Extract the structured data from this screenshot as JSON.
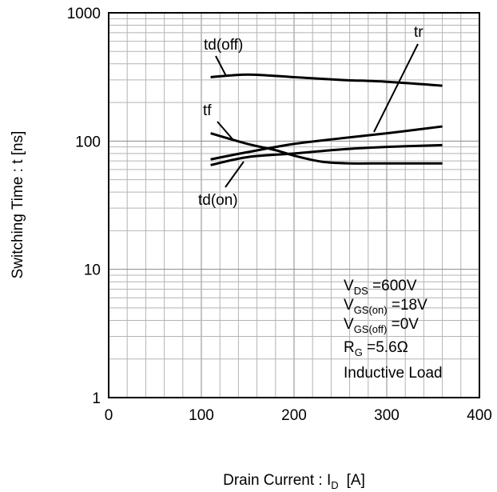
{
  "chart_data": {
    "type": "line",
    "xlabel": {
      "main": "Drain Current : I",
      "sub": "D",
      "unit": "[A]"
    },
    "ylabel": "Switching Time : t [ns]",
    "xlim": [
      0,
      400
    ],
    "ylim": [
      1,
      1000
    ],
    "y_scale": "log",
    "grid": true,
    "x_ticks": [
      0,
      100,
      200,
      300,
      400
    ],
    "x_tick_labels": [
      "0",
      "100",
      "200",
      "300",
      "400"
    ],
    "y_ticks": [
      1,
      10,
      100,
      1000
    ],
    "y_tick_labels": [
      "1",
      "10",
      "100",
      "1000"
    ],
    "series": [
      {
        "name": "td(off)",
        "x": [
          110,
          150,
          200,
          250,
          300,
          360
        ],
        "y": [
          315,
          330,
          315,
          300,
          290,
          270
        ]
      },
      {
        "name": "tr",
        "x": [
          110,
          150,
          200,
          250,
          300,
          360
        ],
        "y": [
          72,
          82,
          95,
          105,
          115,
          130
        ]
      },
      {
        "name": "tf",
        "x": [
          110,
          150,
          180,
          200,
          230,
          260,
          300,
          360
        ],
        "y": [
          115,
          95,
          85,
          77,
          69,
          67,
          67,
          67
        ]
      },
      {
        "name": "td(on)",
        "x": [
          110,
          150,
          200,
          250,
          300,
          360
        ],
        "y": [
          65,
          75,
          80,
          86,
          90,
          93
        ]
      }
    ],
    "annotations": [
      {
        "main": "V",
        "sub": "DS",
        "rest": " =600V"
      },
      {
        "main": "V",
        "sub": "GS(on)",
        "rest": " =18V"
      },
      {
        "main": "V",
        "sub": "GS(off)",
        "rest": " =0V"
      },
      {
        "main": "R",
        "sub": "G",
        "rest": " =5.6Ω"
      },
      {
        "main": "Inductive Load",
        "sub": "",
        "rest": ""
      }
    ]
  }
}
